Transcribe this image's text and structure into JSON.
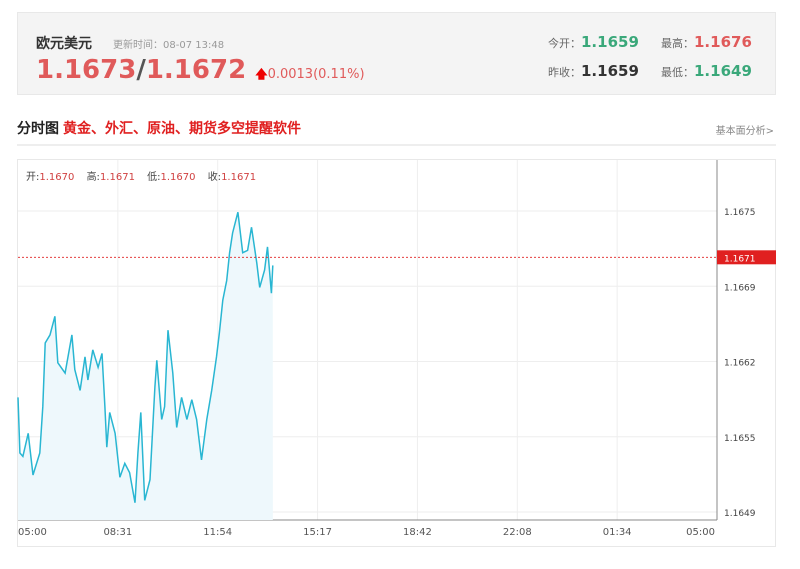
{
  "header": {
    "name": "欧元美元",
    "update_label": "更新时间：",
    "update_time": "08-07 13:48",
    "bid": "1.1673",
    "separator": "/",
    "ask": "1.1672",
    "change": "0.0013(0.11%)",
    "change_icon": "arrow-up-icon"
  },
  "stats": {
    "open_label": "今开：",
    "open": "1.1659",
    "high_label": "最高：",
    "high": "1.1676",
    "prev_label": "昨收：",
    "prev": "1.1659",
    "low_label": "最低：",
    "low": "1.1649"
  },
  "section": {
    "title": "分时图",
    "ad": "黄金、外汇、原油、期货多空提醒软件",
    "more": "基本面分析>"
  },
  "ohlc": {
    "o_label": "开:",
    "o": "1.1670",
    "h_label": "高:",
    "h": "1.1671",
    "l_label": "低:",
    "l": "1.1670",
    "c_label": "收:",
    "c": "1.1671"
  },
  "colors": {
    "line": "#29b6d2",
    "fill": "#eef8fc",
    "up": "#e05a5a",
    "down": "#3aa87a",
    "current": "#e02020"
  },
  "chart_data": {
    "type": "area",
    "xticks": [
      "05:00",
      "08:31",
      "11:54",
      "15:17",
      "18:42",
      "22:08",
      "01:34",
      "05:00"
    ],
    "yticks": [
      "1.1675",
      "1.1669",
      "1.1662",
      "1.1655",
      "1.1649"
    ],
    "ylim": [
      1.1649,
      1.1675
    ],
    "current_price": "1.1671",
    "grid": true,
    "points": [
      [
        "05:00",
        1.16589
      ],
      [
        "05:04",
        1.16541
      ],
      [
        "05:10",
        1.16538
      ],
      [
        "05:21",
        1.16558
      ],
      [
        "05:31",
        1.16522
      ],
      [
        "05:45",
        1.16541
      ],
      [
        "05:51",
        1.16581
      ],
      [
        "05:56",
        1.16636
      ],
      [
        "06:06",
        1.16643
      ],
      [
        "06:16",
        1.16659
      ],
      [
        "06:22",
        1.16619
      ],
      [
        "06:37",
        1.1661
      ],
      [
        "06:51",
        1.16643
      ],
      [
        "06:57",
        1.16613
      ],
      [
        "07:08",
        1.16595
      ],
      [
        "07:18",
        1.16624
      ],
      [
        "07:24",
        1.16604
      ],
      [
        "07:34",
        1.1663
      ],
      [
        "07:45",
        1.16615
      ],
      [
        "07:53",
        1.16627
      ],
      [
        "07:59",
        1.16581
      ],
      [
        "08:03",
        1.16546
      ],
      [
        "08:09",
        1.16576
      ],
      [
        "08:20",
        1.16558
      ],
      [
        "08:30",
        1.1652
      ],
      [
        "08:40",
        1.16532
      ],
      [
        "08:50",
        1.16524
      ],
      [
        "09:01",
        1.16498
      ],
      [
        "09:07",
        1.16541
      ],
      [
        "09:13",
        1.16576
      ],
      [
        "09:21",
        1.165
      ],
      [
        "09:32",
        1.16518
      ],
      [
        "09:42",
        1.16598
      ],
      [
        "09:46",
        1.16621
      ],
      [
        "09:56",
        1.1657
      ],
      [
        "10:02",
        1.16581
      ],
      [
        "10:09",
        1.16647
      ],
      [
        "10:19",
        1.1661
      ],
      [
        "10:27",
        1.16563
      ],
      [
        "10:37",
        1.16589
      ],
      [
        "10:48",
        1.1657
      ],
      [
        "10:58",
        1.16587
      ],
      [
        "11:08",
        1.1657
      ],
      [
        "11:18",
        1.16535
      ],
      [
        "11:29",
        1.1657
      ],
      [
        "11:39",
        1.16595
      ],
      [
        "11:49",
        1.16624
      ],
      [
        "11:55",
        1.16645
      ],
      [
        "12:02",
        1.16673
      ],
      [
        "12:10",
        1.1669
      ],
      [
        "12:16",
        1.16714
      ],
      [
        "12:22",
        1.16731
      ],
      [
        "12:33",
        1.16749
      ],
      [
        "12:43",
        1.16714
      ],
      [
        "12:53",
        1.16716
      ],
      [
        "13:01",
        1.16736
      ],
      [
        "13:12",
        1.16705
      ],
      [
        "13:18",
        1.16684
      ],
      [
        "13:28",
        1.16699
      ],
      [
        "13:34",
        1.16719
      ],
      [
        "13:42",
        1.16679
      ],
      [
        "13:45",
        1.16703
      ]
    ]
  }
}
